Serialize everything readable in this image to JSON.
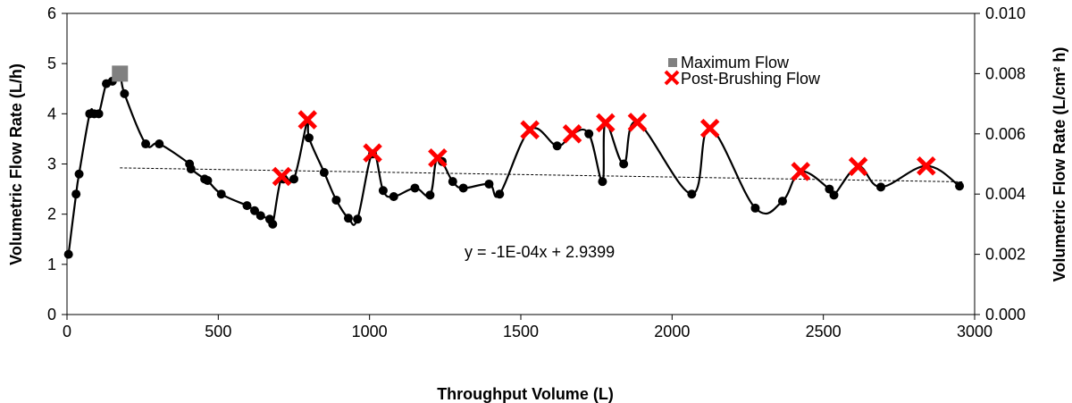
{
  "chart_data": {
    "type": "scatter",
    "xlabel": "Throughput Volume (L)",
    "ylabel": "Volumetric Flow Rate (L/h)",
    "y2label": "Volumetric Flow Rate (L/cm² h)",
    "xlim": [
      0,
      3000
    ],
    "ylim": [
      0,
      6
    ],
    "y2lim": [
      0,
      0.01
    ],
    "x_ticks": [
      "0",
      "500",
      "1000",
      "1500",
      "2000",
      "2500",
      "3000"
    ],
    "y_ticks": [
      "0",
      "1",
      "2",
      "3",
      "4",
      "5",
      "6"
    ],
    "y2_ticks": [
      "0.000",
      "0.002",
      "0.004",
      "0.006",
      "0.008",
      "0.010"
    ],
    "grid": false,
    "legend_position": "top-right",
    "trendline": {
      "label": "y = -1E-04x + 2.9399",
      "slope": -0.0001,
      "intercept": 2.9399,
      "x_range": [
        175,
        2960
      ]
    },
    "series": [
      {
        "name": "",
        "marker": "circle",
        "color": "#000000",
        "points": [
          [
            5,
            1.2
          ],
          [
            30,
            2.4
          ],
          [
            40,
            2.8
          ],
          [
            75,
            4.0
          ],
          [
            90,
            4.0
          ],
          [
            105,
            4.0
          ],
          [
            130,
            4.6
          ],
          [
            150,
            4.65
          ],
          [
            190,
            4.4
          ],
          [
            260,
            3.4
          ],
          [
            305,
            3.4
          ],
          [
            405,
            3.0
          ],
          [
            410,
            2.9
          ],
          [
            455,
            2.7
          ],
          [
            465,
            2.67
          ],
          [
            510,
            2.4
          ],
          [
            595,
            2.17
          ],
          [
            620,
            2.07
          ],
          [
            640,
            1.97
          ],
          [
            670,
            1.9
          ],
          [
            680,
            1.8
          ],
          [
            715,
            2.7
          ],
          [
            750,
            2.7
          ],
          [
            800,
            3.52
          ],
          [
            850,
            2.83
          ],
          [
            890,
            2.28
          ],
          [
            930,
            1.92
          ],
          [
            960,
            1.9
          ],
          [
            1010,
            3.2
          ],
          [
            1045,
            2.47
          ],
          [
            1080,
            2.35
          ],
          [
            1150,
            2.52
          ],
          [
            1200,
            2.38
          ],
          [
            1240,
            3.05
          ],
          [
            1275,
            2.65
          ],
          [
            1310,
            2.52
          ],
          [
            1395,
            2.6
          ],
          [
            1430,
            2.4
          ],
          [
            1620,
            3.36
          ],
          [
            1725,
            3.6
          ],
          [
            1770,
            2.65
          ],
          [
            1840,
            3.0
          ],
          [
            2065,
            2.4
          ],
          [
            2275,
            2.12
          ],
          [
            2365,
            2.26
          ],
          [
            2520,
            2.5
          ],
          [
            2535,
            2.38
          ],
          [
            2690,
            2.54
          ],
          [
            2950,
            2.56
          ]
        ]
      },
      {
        "name": "Maximum Flow",
        "marker": "square",
        "color": "#808080",
        "points": [
          [
            175,
            4.8
          ]
        ]
      },
      {
        "name": "Post-Brushing Flow",
        "marker": "x",
        "color": "#ff0000",
        "points": [
          [
            710,
            2.75
          ],
          [
            795,
            3.88
          ],
          [
            1010,
            3.22
          ],
          [
            1225,
            3.12
          ],
          [
            1530,
            3.68
          ],
          [
            1670,
            3.6
          ],
          [
            1780,
            3.82
          ],
          [
            1885,
            3.83
          ],
          [
            2125,
            3.71
          ],
          [
            2425,
            2.85
          ],
          [
            2615,
            2.95
          ],
          [
            2840,
            2.96
          ]
        ]
      }
    ],
    "curve_points": [
      [
        5,
        1.2
      ],
      [
        30,
        2.4
      ],
      [
        40,
        2.8
      ],
      [
        75,
        4.0
      ],
      [
        90,
        4.0
      ],
      [
        105,
        4.0
      ],
      [
        130,
        4.6
      ],
      [
        150,
        4.65
      ],
      [
        175,
        4.8
      ],
      [
        190,
        4.4
      ],
      [
        260,
        3.4
      ],
      [
        305,
        3.4
      ],
      [
        405,
        3.0
      ],
      [
        410,
        2.9
      ],
      [
        455,
        2.7
      ],
      [
        465,
        2.67
      ],
      [
        510,
        2.4
      ],
      [
        595,
        2.17
      ],
      [
        620,
        2.07
      ],
      [
        640,
        1.97
      ],
      [
        670,
        1.9
      ],
      [
        680,
        1.8
      ],
      [
        710,
        2.75
      ],
      [
        750,
        2.7
      ],
      [
        795,
        3.88
      ],
      [
        800,
        3.52
      ],
      [
        850,
        2.83
      ],
      [
        890,
        2.28
      ],
      [
        930,
        1.92
      ],
      [
        960,
        1.9
      ],
      [
        1010,
        3.22
      ],
      [
        1045,
        2.47
      ],
      [
        1080,
        2.35
      ],
      [
        1150,
        2.52
      ],
      [
        1200,
        2.38
      ],
      [
        1225,
        3.12
      ],
      [
        1275,
        2.65
      ],
      [
        1310,
        2.52
      ],
      [
        1395,
        2.6
      ],
      [
        1430,
        2.4
      ],
      [
        1530,
        3.68
      ],
      [
        1620,
        3.36
      ],
      [
        1670,
        3.6
      ],
      [
        1725,
        3.6
      ],
      [
        1770,
        2.65
      ],
      [
        1780,
        3.82
      ],
      [
        1840,
        3.0
      ],
      [
        1885,
        3.83
      ],
      [
        2065,
        2.4
      ],
      [
        2125,
        3.71
      ],
      [
        2275,
        2.12
      ],
      [
        2365,
        2.26
      ],
      [
        2425,
        2.85
      ],
      [
        2520,
        2.5
      ],
      [
        2535,
        2.38
      ],
      [
        2615,
        2.95
      ],
      [
        2690,
        2.54
      ],
      [
        2840,
        2.96
      ],
      [
        2950,
        2.56
      ]
    ]
  }
}
